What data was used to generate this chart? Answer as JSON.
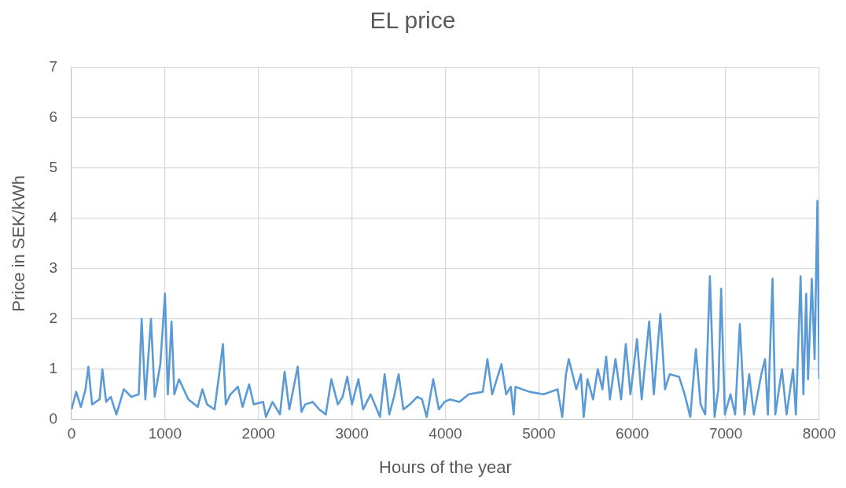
{
  "chart_data": {
    "type": "line",
    "title": "EL price",
    "xlabel": "Hours of the year",
    "ylabel": "Price in SEK/kWh",
    "xlim": [
      0,
      8000
    ],
    "xticks": [
      0,
      1000,
      2000,
      3000,
      4000,
      5000,
      6000,
      7000,
      8000
    ],
    "ylim": [
      0,
      7
    ],
    "yticks": [
      0,
      1,
      2,
      3,
      4,
      5,
      6,
      7
    ],
    "grid": true,
    "legend": false,
    "marker": "none",
    "line_style": "solid",
    "series": [
      {
        "color": "#5b9bd5",
        "x": [
          0,
          50,
          100,
          150,
          180,
          220,
          300,
          330,
          370,
          420,
          480,
          560,
          640,
          720,
          750,
          790,
          850,
          890,
          950,
          1000,
          1030,
          1070,
          1100,
          1150,
          1250,
          1350,
          1400,
          1450,
          1530,
          1580,
          1620,
          1650,
          1700,
          1780,
          1830,
          1900,
          1950,
          2050,
          2080,
          2150,
          2230,
          2280,
          2330,
          2420,
          2460,
          2500,
          2580,
          2650,
          2720,
          2780,
          2850,
          2900,
          2950,
          3000,
          3070,
          3120,
          3200,
          3300,
          3350,
          3400,
          3450,
          3500,
          3550,
          3620,
          3700,
          3750,
          3800,
          3870,
          3930,
          3990,
          4050,
          4150,
          4250,
          4400,
          4450,
          4500,
          4600,
          4650,
          4700,
          4730,
          4750,
          4900,
          5050,
          5200,
          5250,
          5290,
          5320,
          5400,
          5450,
          5480,
          5520,
          5580,
          5630,
          5680,
          5720,
          5760,
          5820,
          5880,
          5930,
          5980,
          6050,
          6100,
          6180,
          6230,
          6300,
          6350,
          6400,
          6500,
          6560,
          6620,
          6680,
          6730,
          6780,
          6830,
          6880,
          6920,
          6950,
          6990,
          7050,
          7100,
          7150,
          7200,
          7250,
          7300,
          7380,
          7420,
          7450,
          7500,
          7530,
          7600,
          7650,
          7720,
          7750,
          7800,
          7830,
          7860,
          7880,
          7920,
          7950,
          7980,
          7990,
          8000
        ],
        "values": [
          0.2,
          0.55,
          0.25,
          0.6,
          1.05,
          0.3,
          0.4,
          1.0,
          0.35,
          0.45,
          0.1,
          0.6,
          0.45,
          0.5,
          2.0,
          0.4,
          2.0,
          0.45,
          1.1,
          2.5,
          0.5,
          1.95,
          0.5,
          0.8,
          0.4,
          0.25,
          0.6,
          0.3,
          0.2,
          0.9,
          1.5,
          0.3,
          0.5,
          0.65,
          0.25,
          0.7,
          0.3,
          0.35,
          0.05,
          0.35,
          0.1,
          0.95,
          0.2,
          1.05,
          0.15,
          0.3,
          0.35,
          0.2,
          0.1,
          0.8,
          0.3,
          0.45,
          0.85,
          0.3,
          0.8,
          0.2,
          0.5,
          0.05,
          0.9,
          0.1,
          0.45,
          0.9,
          0.2,
          0.3,
          0.45,
          0.4,
          0.05,
          0.8,
          0.2,
          0.35,
          0.4,
          0.35,
          0.5,
          0.55,
          1.2,
          0.5,
          1.1,
          0.5,
          0.65,
          0.1,
          0.65,
          0.55,
          0.5,
          0.6,
          0.05,
          0.9,
          1.2,
          0.6,
          0.9,
          0.05,
          0.8,
          0.4,
          1.0,
          0.6,
          1.25,
          0.4,
          1.2,
          0.4,
          1.5,
          0.5,
          1.6,
          0.4,
          1.95,
          0.5,
          2.1,
          0.6,
          0.9,
          0.85,
          0.5,
          0.05,
          1.4,
          0.3,
          0.1,
          2.85,
          0.05,
          0.6,
          2.6,
          0.1,
          0.5,
          0.1,
          1.9,
          0.1,
          0.9,
          0.1,
          0.9,
          1.2,
          0.1,
          2.8,
          0.1,
          1.0,
          0.1,
          1.0,
          0.1,
          2.85,
          0.5,
          2.5,
          0.8,
          2.8,
          1.2,
          4.35,
          2.5,
          0.8
        ]
      }
    ]
  }
}
